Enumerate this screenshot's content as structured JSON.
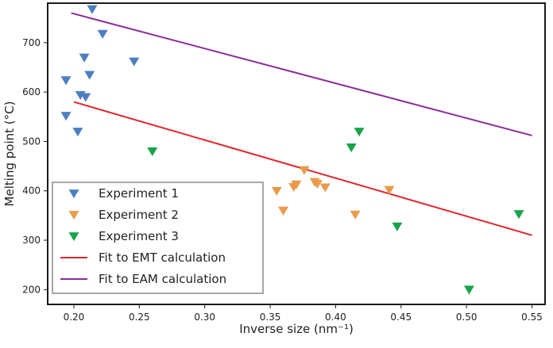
{
  "chart_data": {
    "type": "scatter",
    "xlabel": "Inverse size (nm⁻¹)",
    "ylabel": "Melting point (°C)",
    "xlim": [
      0.18,
      0.56
    ],
    "ylim": [
      170,
      780
    ],
    "xticks": [
      0.2,
      0.25,
      0.3,
      0.35,
      0.4,
      0.45,
      0.5,
      0.55
    ],
    "xtick_labels": [
      "0.20",
      "0.25",
      "0.30",
      "0.35",
      "0.40",
      "0.45",
      "0.50",
      "0.55"
    ],
    "yticks": [
      200,
      300,
      400,
      500,
      600,
      700
    ],
    "ytick_labels": [
      "200",
      "300",
      "400",
      "500",
      "600",
      "700"
    ],
    "grid": false,
    "legend_position": "bottom-left",
    "series": [
      {
        "name": "Experiment 1",
        "kind": "scatter",
        "marker": "triangle-down",
        "color": "#4c7fbf",
        "points": [
          [
            0.214,
            768
          ],
          [
            0.222,
            718
          ],
          [
            0.208,
            670
          ],
          [
            0.246,
            662
          ],
          [
            0.212,
            635
          ],
          [
            0.194,
            624
          ],
          [
            0.205,
            594
          ],
          [
            0.209,
            590
          ],
          [
            0.194,
            552
          ],
          [
            0.203,
            520
          ]
        ]
      },
      {
        "name": "Experiment 2",
        "kind": "scatter",
        "marker": "triangle-down",
        "color": "#eb9a4b",
        "points": [
          [
            0.376,
            442
          ],
          [
            0.384,
            418
          ],
          [
            0.386,
            414
          ],
          [
            0.37,
            413
          ],
          [
            0.368,
            408
          ],
          [
            0.392,
            407
          ],
          [
            0.441,
            402
          ],
          [
            0.355,
            400
          ],
          [
            0.36,
            360
          ],
          [
            0.415,
            352
          ]
        ]
      },
      {
        "name": "Experiment 3",
        "kind": "scatter",
        "marker": "triangle-down",
        "color": "#17a34a",
        "points": [
          [
            0.418,
            520
          ],
          [
            0.412,
            488
          ],
          [
            0.26,
            480
          ],
          [
            0.54,
            353
          ],
          [
            0.447,
            328
          ],
          [
            0.502,
            200
          ]
        ]
      },
      {
        "name": "Fit to EMT calculation",
        "kind": "line",
        "color": "#e0262d",
        "points": [
          [
            0.2,
            580
          ],
          [
            0.55,
            310
          ]
        ]
      },
      {
        "name": "Fit to EAM calculation",
        "kind": "line",
        "color": "#8e2b9a",
        "points": [
          [
            0.198,
            760
          ],
          [
            0.55,
            512
          ]
        ]
      }
    ]
  }
}
